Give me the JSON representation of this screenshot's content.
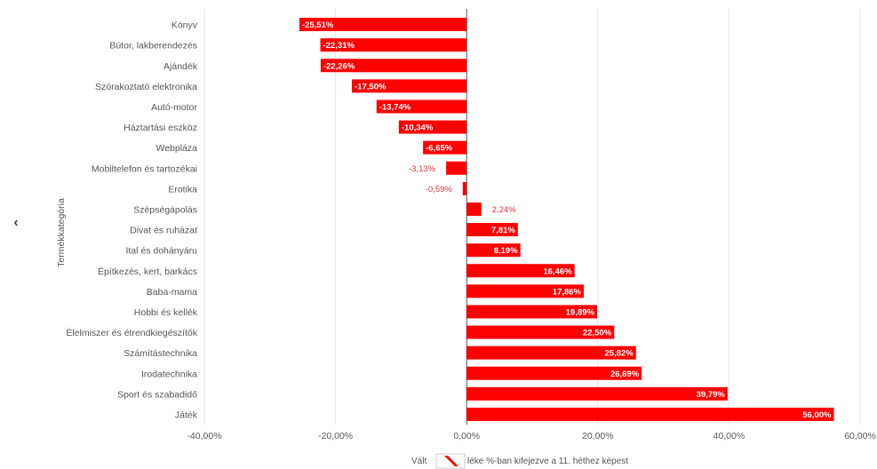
{
  "nav": {
    "prev_glyph": "‹"
  },
  "legend": {
    "prefix": "Vált",
    "text": "léke %-ban kifejezve a 11. héthez képest"
  },
  "chart_data": {
    "type": "bar",
    "orientation": "horizontal",
    "ylabel": "Termékkategória",
    "xlim": [
      -40,
      60
    ],
    "xticks": [
      "-40,00%",
      "-20,00%",
      "0,00%",
      "20,00%",
      "40,00%",
      "60,00%"
    ],
    "xtick_values": [
      -40,
      -20,
      0,
      20,
      40,
      60
    ],
    "bar_color": "#ff0000",
    "grid": true,
    "categories": [
      "Könyv",
      "Bútor, lakberendezés",
      "Ajándék",
      "Szórakoztató elektronika",
      "Autó-motor",
      "Háztartási eszköz",
      "Webpláza",
      "Mobiltelefon és tartozékai",
      "Erotika",
      "Szépségápolás",
      "Divat és ruházat",
      "Ital és dohányáru",
      "Építkezés, kert, barkács",
      "Baba-mama",
      "Hobbi és kellék",
      "Élelmiszer és étrendkiegészítők",
      "Számítástechnika",
      "Irodatechnika",
      "Sport és szabadidő",
      "Játék"
    ],
    "values": [
      -25.51,
      -22.31,
      -22.26,
      -17.5,
      -13.74,
      -10.34,
      -6.65,
      -3.13,
      -0.59,
      2.24,
      7.81,
      8.19,
      16.46,
      17.86,
      19.89,
      22.5,
      25.82,
      26.69,
      39.79,
      56.0
    ],
    "labels": [
      "-25,51%",
      "-22,31%",
      "-22,26%",
      "-17,50%",
      "-13,74%",
      "-10,34%",
      "-6,65%",
      "-3,13%",
      "-0,59%",
      "2,24%",
      "7,81%",
      "8,19%",
      "16,46%",
      "17,86%",
      "19,89%",
      "22,50%",
      "25,82%",
      "26,69%",
      "39,79%",
      "56,00%"
    ]
  }
}
